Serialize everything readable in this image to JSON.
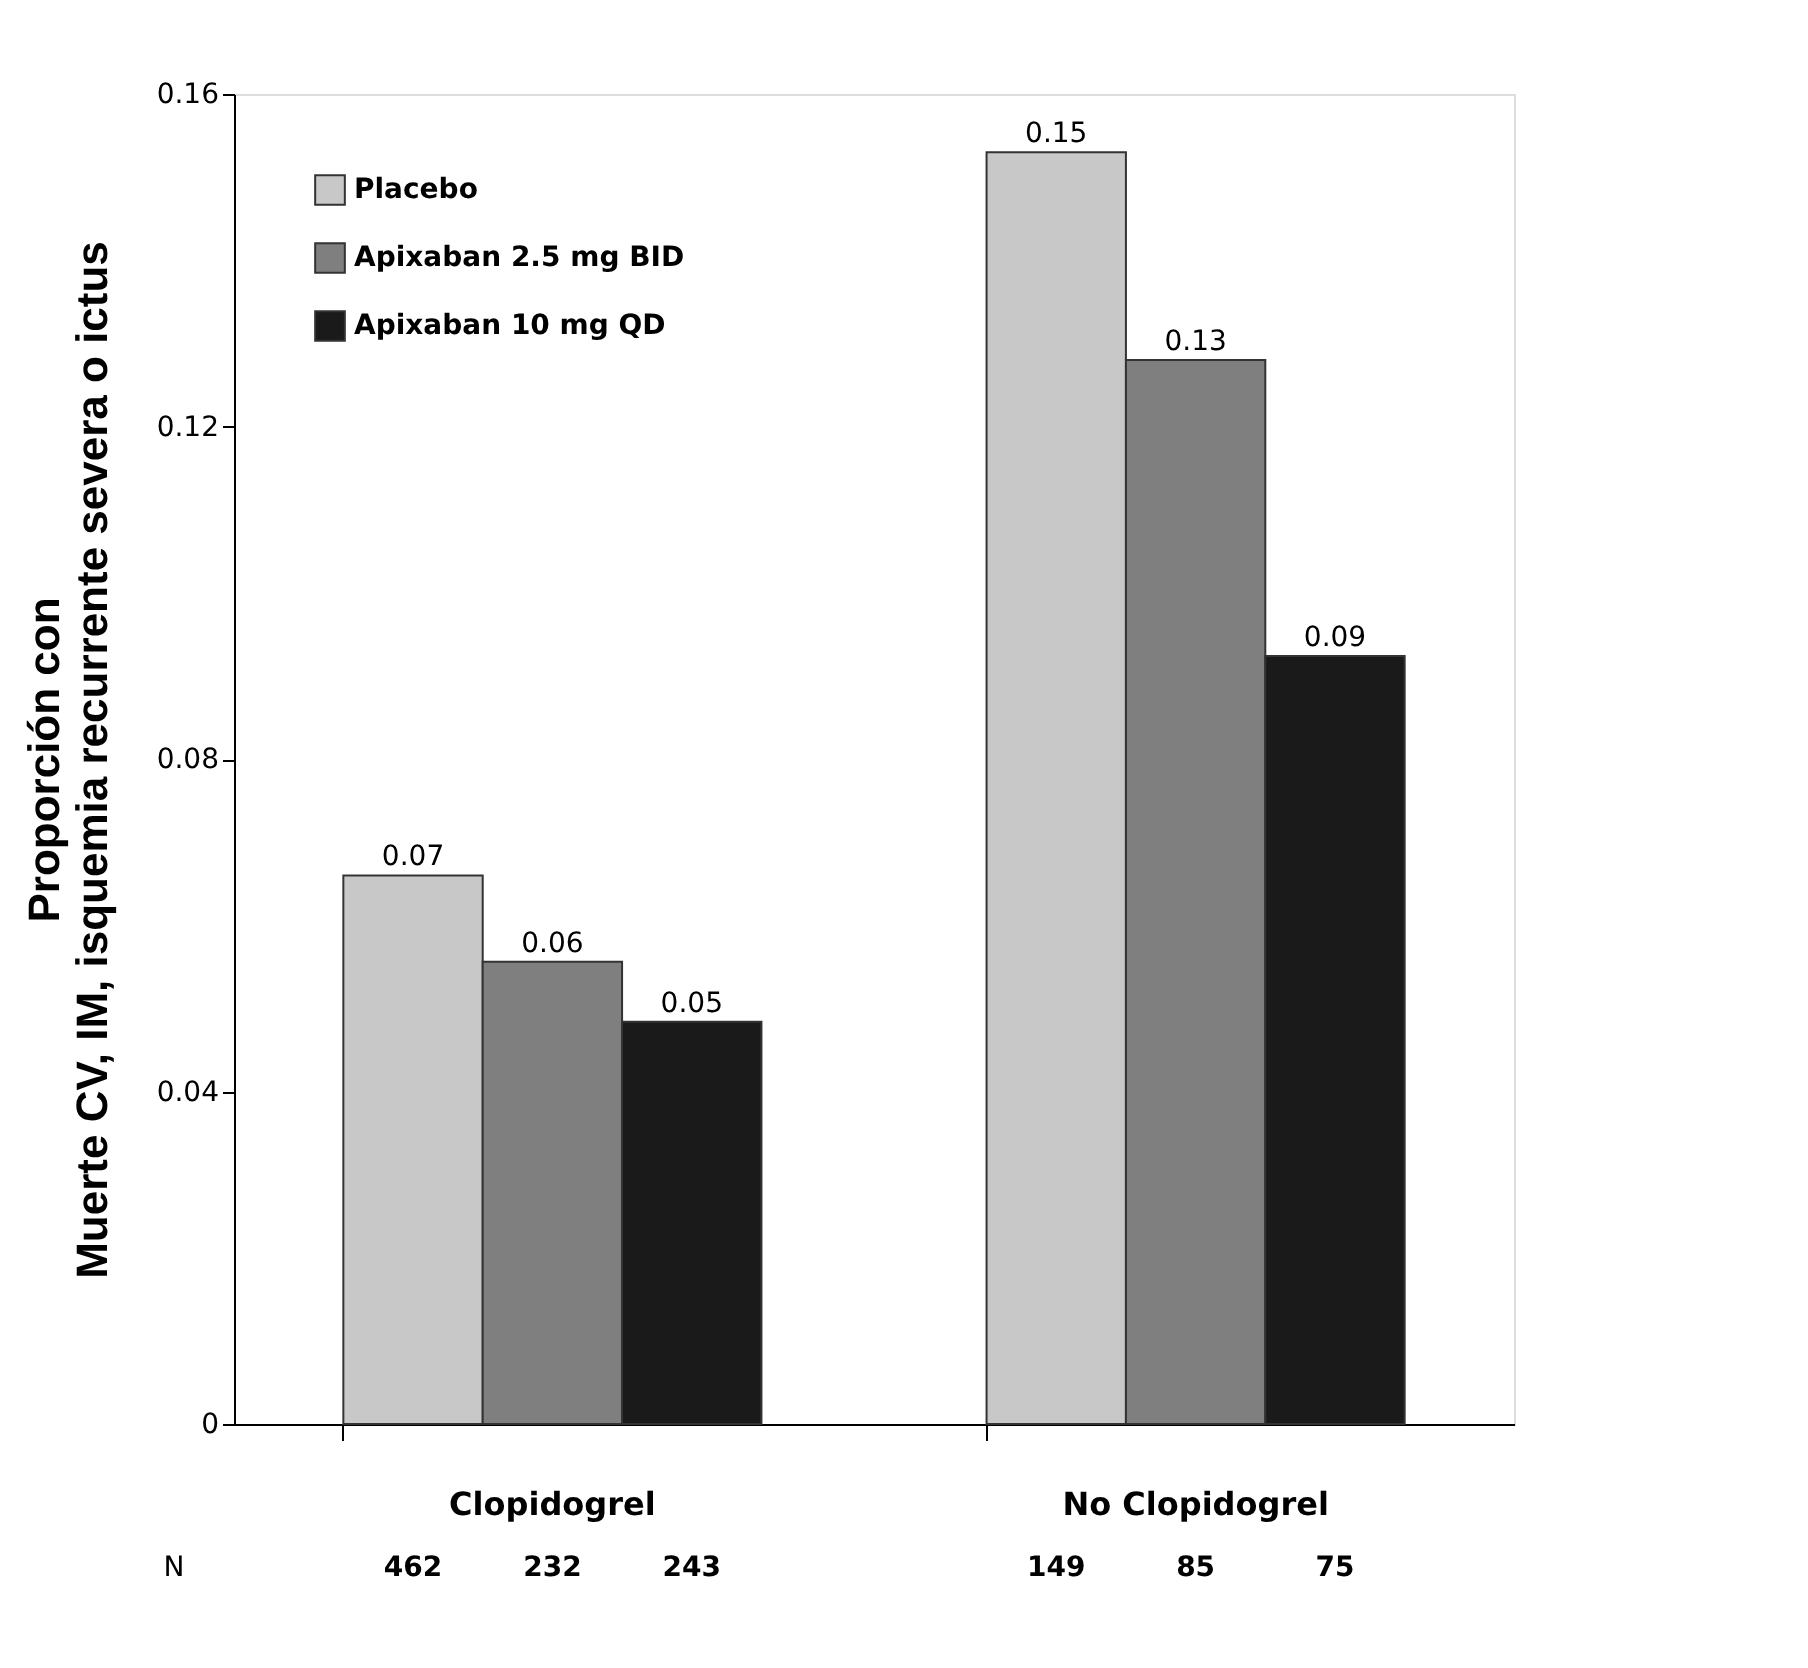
{
  "chart_data": {
    "type": "bar",
    "ylabel": "Proporción con\nMuerte CV, IM, isquemia recurrente severa o ictus",
    "categories": [
      "Clopidogrel",
      "No Clopidogrel"
    ],
    "series": [
      {
        "name": "Placebo",
        "color": "#c8c8c8",
        "values": [
          0.066,
          0.153
        ],
        "value_labels": [
          "0.07",
          "0.15"
        ]
      },
      {
        "name": "Apixaban 2.5 mg BID",
        "color": "#7f7f7f",
        "values": [
          0.0556,
          0.128
        ],
        "value_labels": [
          "0.06",
          "0.13"
        ]
      },
      {
        "name": "Apixaban 10 mg QD",
        "color": "#1a1a1a",
        "values": [
          0.0484,
          0.0924
        ],
        "value_labels": [
          "0.05",
          "0.09"
        ]
      }
    ],
    "ylim": [
      0,
      0.16
    ],
    "yticks": [
      {
        "value": 0,
        "label": "0"
      },
      0.04,
      0.08,
      0.12,
      0.16
    ],
    "grid": false,
    "legend": "top left",
    "annotations": [
      "N",
      "462",
      "232",
      "243",
      "149",
      "85",
      "75"
    ]
  }
}
